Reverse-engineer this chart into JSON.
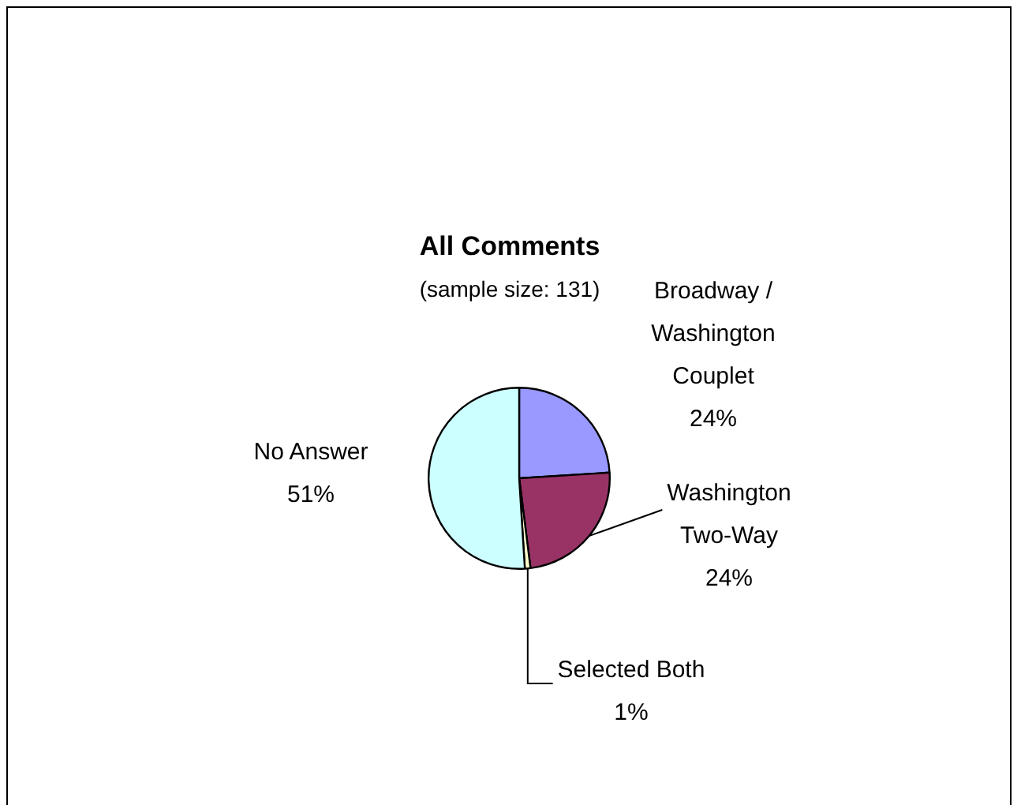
{
  "chart_data": {
    "type": "pie",
    "title": "All Comments",
    "subtitle": "(sample size: 131)",
    "categories": [
      "Broadway / Washington Couplet",
      "Washington Two-Way",
      "Selected Both",
      "No Answer"
    ],
    "values": [
      24,
      24,
      1,
      51
    ],
    "colors": [
      "#9999ff",
      "#993366",
      "#ffffcc",
      "#ccffff"
    ],
    "value_labels": [
      "24%",
      "24%",
      "1%",
      "51%"
    ],
    "legend": false
  }
}
